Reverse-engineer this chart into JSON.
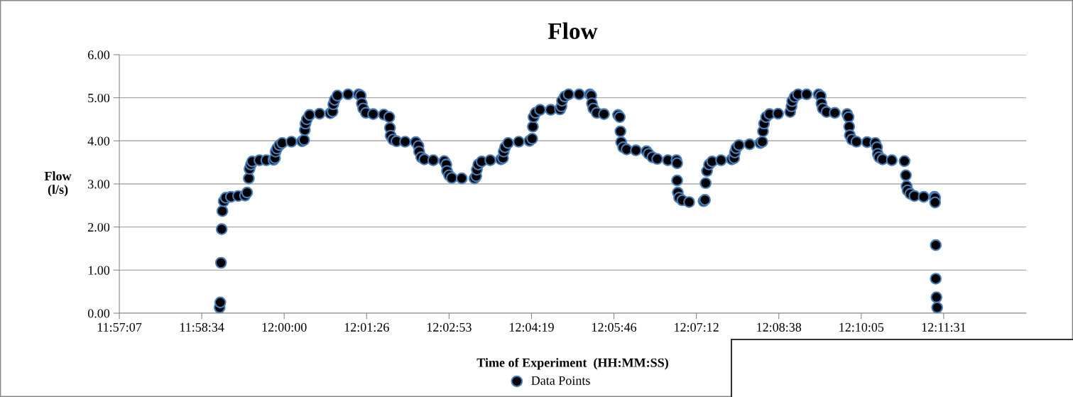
{
  "chart_data": {
    "type": "scatter",
    "title": "Flow",
    "xlabel": "Time of Experiment  (HH:MM:SS)",
    "ylabel": "Flow\n(l/s)",
    "xlim": [
      11.952,
      12.216
    ],
    "xticks": [
      {
        "value": 11.952,
        "label": "11:57:07"
      },
      {
        "value": 11.976,
        "label": "11:58:34"
      },
      {
        "value": 12.0,
        "label": "12:00:00"
      },
      {
        "value": 12.024,
        "label": "12:01:26"
      },
      {
        "value": 12.048,
        "label": "12:02:53"
      },
      {
        "value": 12.072,
        "label": "12:04:19"
      },
      {
        "value": 12.096,
        "label": "12:05:46"
      },
      {
        "value": 12.12,
        "label": "12:07:12"
      },
      {
        "value": 12.144,
        "label": "12:08:38"
      },
      {
        "value": 12.168,
        "label": "12:10:05"
      },
      {
        "value": 12.192,
        "label": "12:11:31"
      }
    ],
    "ylim": [
      0,
      6
    ],
    "yticks": [
      {
        "value": 0,
        "label": "0.00"
      },
      {
        "value": 1,
        "label": "1.00"
      },
      {
        "value": 2,
        "label": "2.00"
      },
      {
        "value": 3,
        "label": "3.00"
      },
      {
        "value": 4,
        "label": "4.00"
      },
      {
        "value": 5,
        "label": "5.00"
      },
      {
        "value": 6,
        "label": "6.00"
      }
    ],
    "grid": "y",
    "legend": "bottom",
    "marker": "circle",
    "series": [
      {
        "name": "Data Points",
        "color": "#000000",
        "x": [
          11.9812,
          11.9814,
          11.9816,
          11.9818,
          11.982,
          11.9824,
          11.983,
          11.9845,
          11.9866,
          11.9886,
          11.9892,
          11.9897,
          11.9899,
          11.9903,
          11.9907,
          11.9928,
          11.9948,
          11.9969,
          11.9973,
          11.9975,
          11.9979,
          11.9986,
          11.9994,
          12.0021,
          12.0052,
          12.0058,
          12.006,
          12.0062,
          12.0066,
          12.0074,
          12.0103,
          12.0134,
          12.0141,
          12.0143,
          12.0147,
          12.0155,
          12.0186,
          12.0217,
          12.0223,
          12.0226,
          12.023,
          12.0238,
          12.0259,
          12.029,
          12.0306,
          12.0308,
          12.031,
          12.0317,
          12.0327,
          12.0352,
          12.0383,
          12.0391,
          12.0393,
          12.0399,
          12.0408,
          12.0434,
          12.0466,
          12.0472,
          12.0474,
          12.048,
          12.0488,
          12.0517,
          12.0554,
          12.0559,
          12.0561,
          12.0565,
          12.0575,
          12.06,
          12.0631,
          12.0637,
          12.0639,
          12.0643,
          12.0652,
          12.0683,
          12.0714,
          12.0722,
          12.0724,
          12.0726,
          12.0732,
          12.0745,
          12.0776,
          12.0803,
          12.0807,
          12.0809,
          12.0817,
          12.0828,
          12.0859,
          12.089,
          12.0894,
          12.0896,
          12.09,
          12.091,
          12.0931,
          12.0972,
          12.0977,
          12.0979,
          12.0981,
          12.0987,
          12.0997,
          12.1024,
          12.1055,
          12.1061,
          12.1072,
          12.1086,
          12.1117,
          12.1142,
          12.1144,
          12.1144,
          12.1146,
          12.115,
          12.1159,
          12.1179,
          12.1221,
          12.1225,
          12.1227,
          12.1231,
          12.1237,
          12.1246,
          12.1272,
          12.1303,
          12.131,
          12.1312,
          12.1316,
          12.1324,
          12.1355,
          12.1386,
          12.1392,
          12.1394,
          12.1397,
          12.1403,
          12.1413,
          12.1438,
          12.1473,
          12.1477,
          12.1479,
          12.1486,
          12.1496,
          12.1521,
          12.1556,
          12.1562,
          12.1564,
          12.1568,
          12.1579,
          12.1603,
          12.1639,
          12.1643,
          12.1645,
          12.1647,
          12.1653,
          12.1666,
          12.1697,
          12.1721,
          12.1726,
          12.1728,
          12.1732,
          12.1742,
          12.1769,
          12.1806,
          12.181,
          12.1812,
          12.1815,
          12.1823,
          12.1835,
          12.1862,
          12.1893,
          12.1895,
          12.1895,
          12.1897,
          12.1897,
          12.1899,
          12.1901
        ],
        "values": [
          0.13,
          0.25,
          1.17,
          1.95,
          2.37,
          2.6,
          2.68,
          2.7,
          2.72,
          2.73,
          2.8,
          3.13,
          3.35,
          3.45,
          3.52,
          3.55,
          3.55,
          3.56,
          3.6,
          3.75,
          3.82,
          3.9,
          3.95,
          3.98,
          3.99,
          4.02,
          4.25,
          4.4,
          4.5,
          4.6,
          4.63,
          4.64,
          4.68,
          4.85,
          4.95,
          5.05,
          5.08,
          5.08,
          5.05,
          4.87,
          4.75,
          4.65,
          4.62,
          4.61,
          4.55,
          4.3,
          4.12,
          4.03,
          3.99,
          3.98,
          3.97,
          3.88,
          3.75,
          3.62,
          3.57,
          3.55,
          3.53,
          3.45,
          3.3,
          3.2,
          3.14,
          3.13,
          3.13,
          3.18,
          3.33,
          3.45,
          3.52,
          3.55,
          3.57,
          3.6,
          3.75,
          3.85,
          3.95,
          3.98,
          4.0,
          4.05,
          4.33,
          4.55,
          4.65,
          4.72,
          4.72,
          4.73,
          4.8,
          4.93,
          5.03,
          5.08,
          5.08,
          5.08,
          5.05,
          4.87,
          4.75,
          4.65,
          4.62,
          4.6,
          4.55,
          4.22,
          3.97,
          3.85,
          3.8,
          3.78,
          3.76,
          3.7,
          3.62,
          3.58,
          3.55,
          3.55,
          3.48,
          3.08,
          2.8,
          2.68,
          2.62,
          2.58,
          2.6,
          2.63,
          3.02,
          3.3,
          3.45,
          3.52,
          3.55,
          3.57,
          3.6,
          3.73,
          3.83,
          3.9,
          3.92,
          3.95,
          3.98,
          4.22,
          4.4,
          4.55,
          4.62,
          4.63,
          4.67,
          4.8,
          4.92,
          5.02,
          5.08,
          5.08,
          5.08,
          5.04,
          4.87,
          4.75,
          4.67,
          4.65,
          4.62,
          4.55,
          4.33,
          4.13,
          4.03,
          3.98,
          3.97,
          3.95,
          3.85,
          3.7,
          3.62,
          3.57,
          3.55,
          3.53,
          3.2,
          2.95,
          2.85,
          2.77,
          2.72,
          2.7,
          2.7,
          2.68,
          2.57,
          1.58,
          0.8,
          0.37,
          0.13
        ]
      }
    ]
  }
}
